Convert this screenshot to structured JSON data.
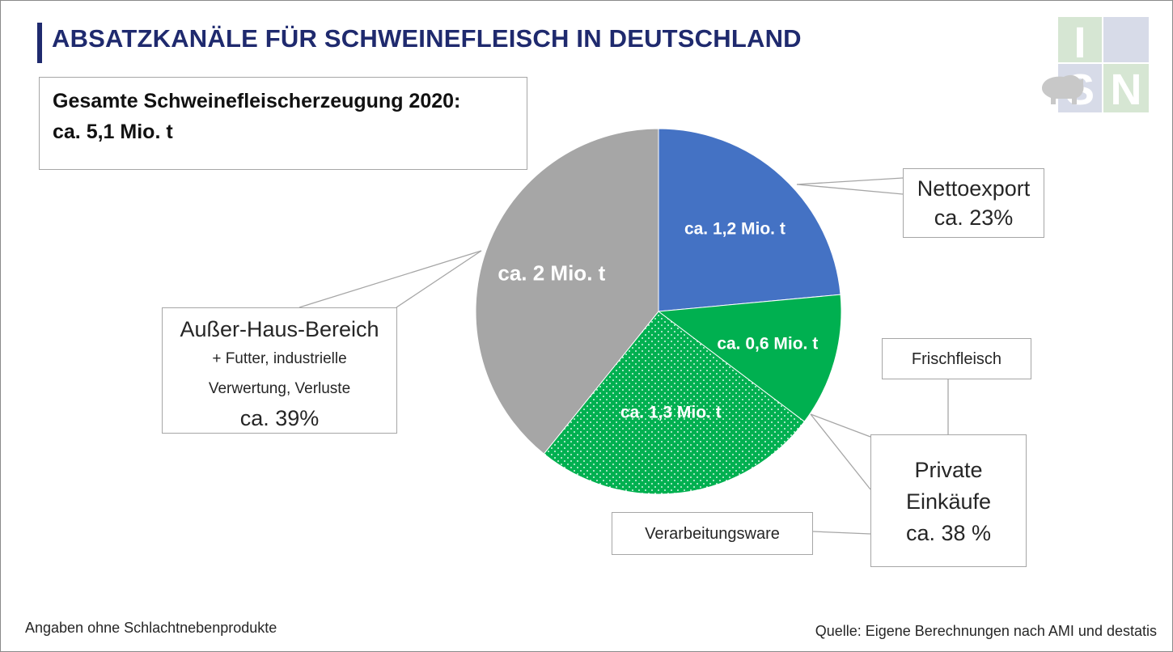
{
  "title": "ABSATZKANÄLE FÜR SCHWEINEFLEISCH IN DEUTSCHLAND",
  "total": {
    "line1": "Gesamte Schweinefleischerzeugung 2020:",
    "line2": "ca. 5,1 Mio. t"
  },
  "chart_data": {
    "type": "pie",
    "slices": [
      {
        "label": "Nettoexport",
        "share_text": "ca. 23%",
        "value": 1.2,
        "value_label": "ca. 1,2 Mio. t",
        "color": "#4472c4",
        "pattern": "solid"
      },
      {
        "label": "Frischfleisch",
        "value": 0.6,
        "value_label": "ca. 0,6 Mio. t",
        "color": "#00b050",
        "pattern": "solid"
      },
      {
        "label": "Verarbeitungsware",
        "value": 1.3,
        "value_label": "ca. 1,3 Mio. t",
        "color": "#00b050",
        "pattern": "dotted"
      },
      {
        "label": "Außer-Haus-Bereich",
        "value": 2.0,
        "value_label": "ca. 2 Mio. t",
        "color": "#a6a6a6",
        "pattern": "solid"
      }
    ],
    "unit": "Mio. t"
  },
  "labels": {
    "netto": {
      "line1": "Nettoexport",
      "line2": "ca. 23%"
    },
    "ausser": {
      "line1": "Außer-Haus-Bereich",
      "line2": "+ Futter, industrielle",
      "line3": "Verwertung, Verluste",
      "line4": "ca. 39%"
    },
    "private": {
      "line1": "Private",
      "line2": "Einkäufe",
      "line3": "ca. 38 %"
    },
    "frisch": "Frischfleisch",
    "verarb": "Verarbeitungsware"
  },
  "logo": {
    "letters": [
      "I",
      "S",
      "N"
    ]
  },
  "footer": {
    "left": "Angaben ohne Schlachtnebenprodukte",
    "right": "Quelle: Eigene Berechnungen nach AMI und destatis"
  }
}
